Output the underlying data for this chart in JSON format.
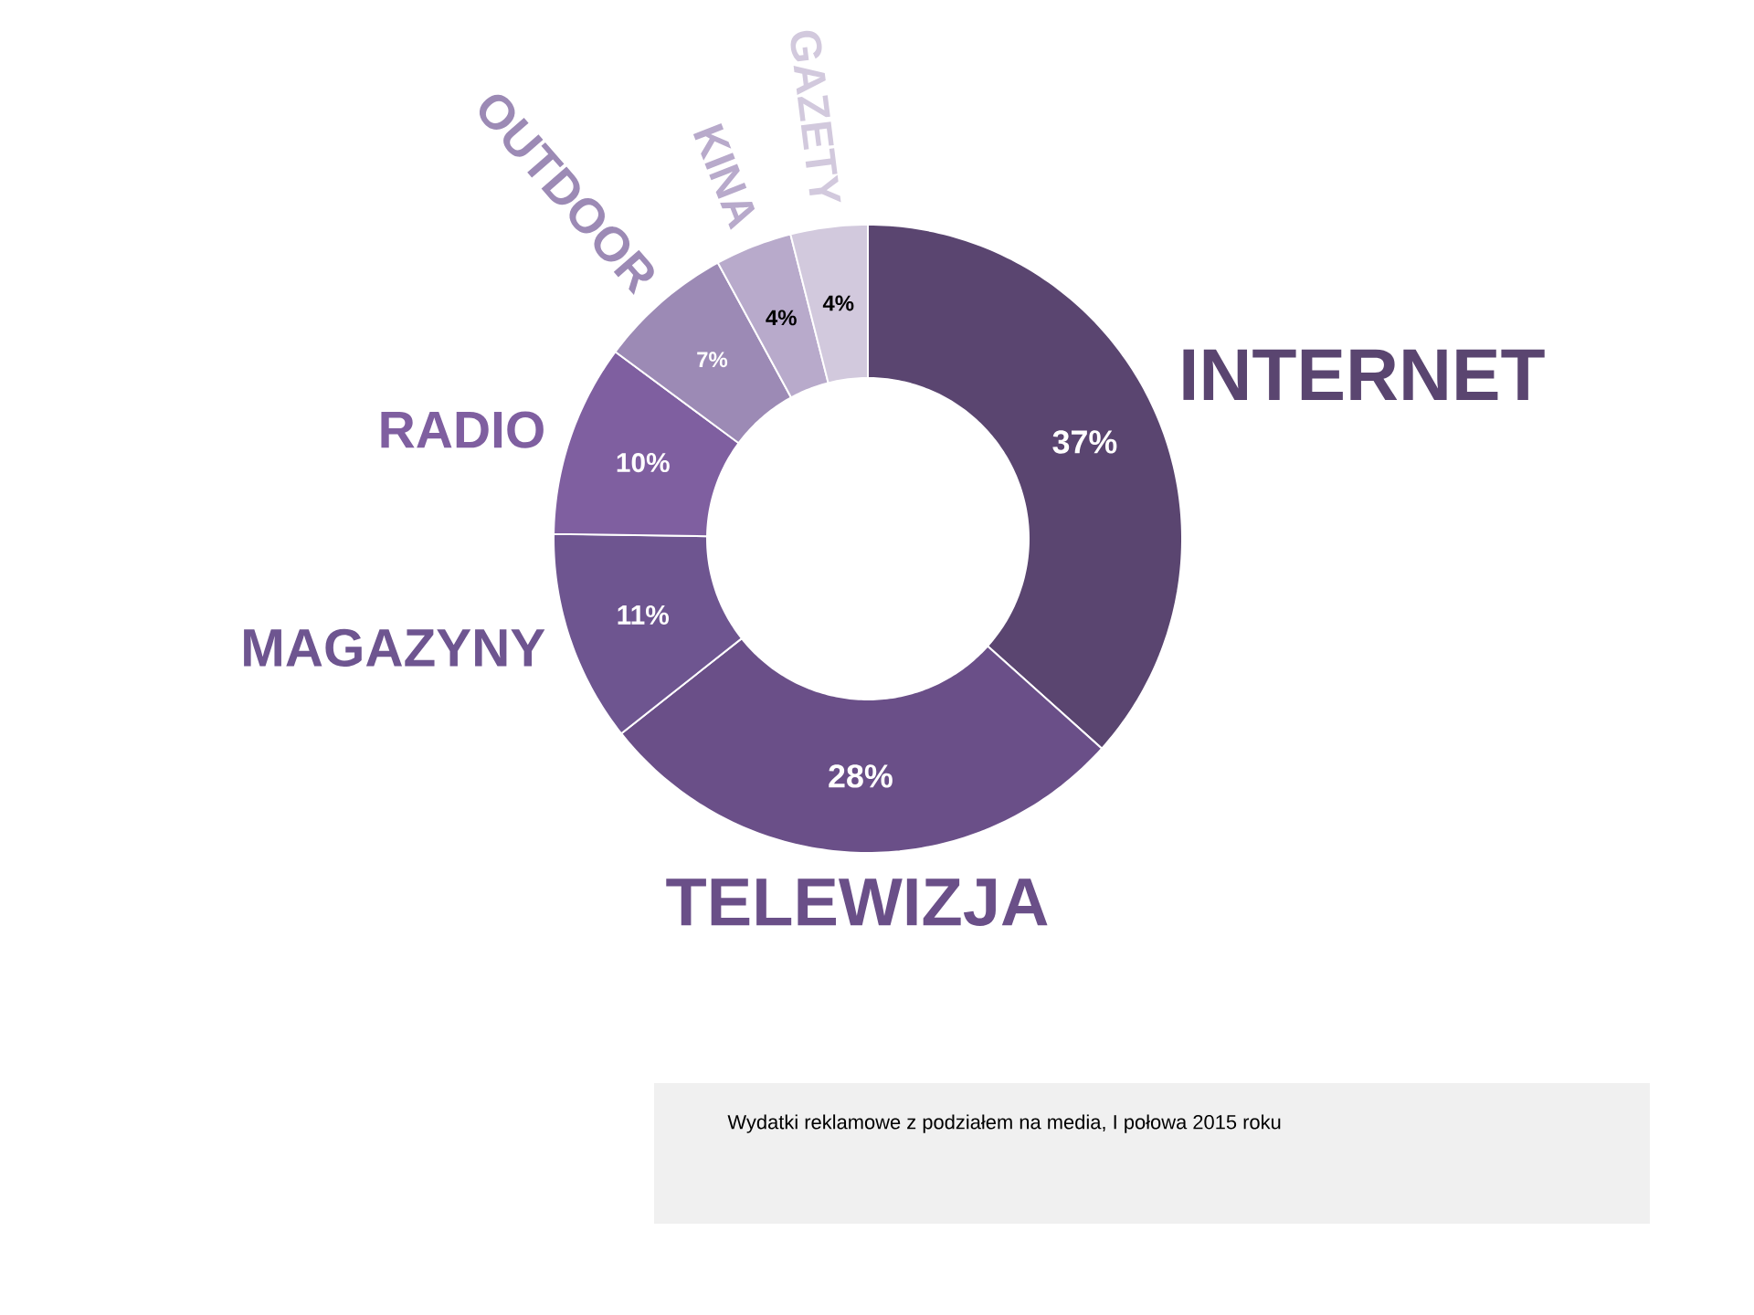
{
  "chart_data": {
    "type": "donut",
    "categories": [
      "INTERNET",
      "TELEWIZJA",
      "MAGAZYNY",
      "RADIO",
      "OUTDOOR",
      "KINA",
      "GAZETY"
    ],
    "values": [
      37,
      28,
      11,
      10,
      7,
      4,
      4
    ],
    "value_labels": [
      "37%",
      "28%",
      "11%",
      "10%",
      "7%",
      "4%",
      "4%"
    ],
    "colors": [
      "#5a4570",
      "#6a4f88",
      "#6e5590",
      "#7f5fa0",
      "#9c8ab5",
      "#b8aacb",
      "#d2c9dd"
    ],
    "annotations": [
      "Wydatki reklamowe z podziałem na media, I połowa 2015 roku"
    ]
  }
}
